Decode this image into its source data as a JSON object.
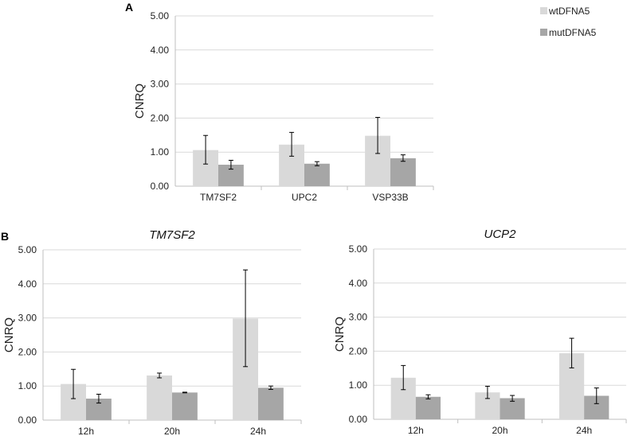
{
  "panel_labels": {
    "a": "A",
    "b": "B"
  },
  "colors": {
    "wt": "#d9d9d9",
    "mut": "#a6a6a6",
    "grid": "#d9d9d9",
    "axis": "#bfbfbf",
    "error": "#000000"
  },
  "legend": [
    {
      "name": "wtDFNA5",
      "color": "#d9d9d9"
    },
    {
      "name": "mutDFNA5",
      "color": "#a6a6a6"
    }
  ],
  "chart_data": [
    {
      "id": "A",
      "type": "bar",
      "title": "",
      "xlabel": "",
      "ylabel": "CNRQ",
      "ylim": [
        0,
        5
      ],
      "yticks": [
        "0.00",
        "1.00",
        "2.00",
        "3.00",
        "4.00",
        "5.00"
      ],
      "categories": [
        "TM7SF2",
        "UPC2",
        "VSP33B"
      ],
      "series": [
        {
          "name": "wtDFNA5",
          "values": [
            1.06,
            1.22,
            1.48
          ],
          "err_low": [
            0.65,
            0.88,
            0.96
          ],
          "err_high": [
            1.49,
            1.58,
            2.02
          ]
        },
        {
          "name": "mutDFNA5",
          "values": [
            0.63,
            0.66,
            0.82
          ],
          "err_low": [
            0.5,
            0.6,
            0.73
          ],
          "err_high": [
            0.76,
            0.72,
            0.92
          ]
        }
      ],
      "grid": true,
      "legend_position": "top-right"
    },
    {
      "id": "B-left",
      "type": "bar",
      "title": "TM7SF2",
      "xlabel": "",
      "ylabel": "CNRQ",
      "ylim": [
        0,
        5
      ],
      "yticks": [
        "0.00",
        "1.00",
        "2.00",
        "3.00",
        "4.00",
        "5.00"
      ],
      "categories": [
        "12h",
        "20h",
        "24h"
      ],
      "series": [
        {
          "name": "wtDFNA5",
          "values": [
            1.06,
            1.31,
            2.98
          ],
          "err_low": [
            0.63,
            1.24,
            1.57
          ],
          "err_high": [
            1.49,
            1.38,
            4.41
          ]
        },
        {
          "name": "mutDFNA5",
          "values": [
            0.63,
            0.81,
            0.95
          ],
          "err_low": [
            0.5,
            0.8,
            0.9
          ],
          "err_high": [
            0.76,
            0.82,
            1.0
          ]
        }
      ],
      "grid": true
    },
    {
      "id": "B-right",
      "type": "bar",
      "title": "UCP2",
      "xlabel": "",
      "ylabel": "CNRQ",
      "ylim": [
        0,
        5
      ],
      "yticks": [
        "0.00",
        "1.00",
        "2.00",
        "3.00",
        "4.00",
        "5.00"
      ],
      "categories": [
        "12h",
        "20h",
        "24h"
      ],
      "series": [
        {
          "name": "wtDFNA5",
          "values": [
            1.22,
            0.79,
            1.94
          ],
          "err_low": [
            0.87,
            0.61,
            1.51
          ],
          "err_high": [
            1.58,
            0.97,
            2.38
          ]
        },
        {
          "name": "mutDFNA5",
          "values": [
            0.66,
            0.62,
            0.69
          ],
          "err_low": [
            0.6,
            0.53,
            0.46
          ],
          "err_high": [
            0.72,
            0.7,
            0.92
          ]
        }
      ],
      "grid": true
    }
  ]
}
